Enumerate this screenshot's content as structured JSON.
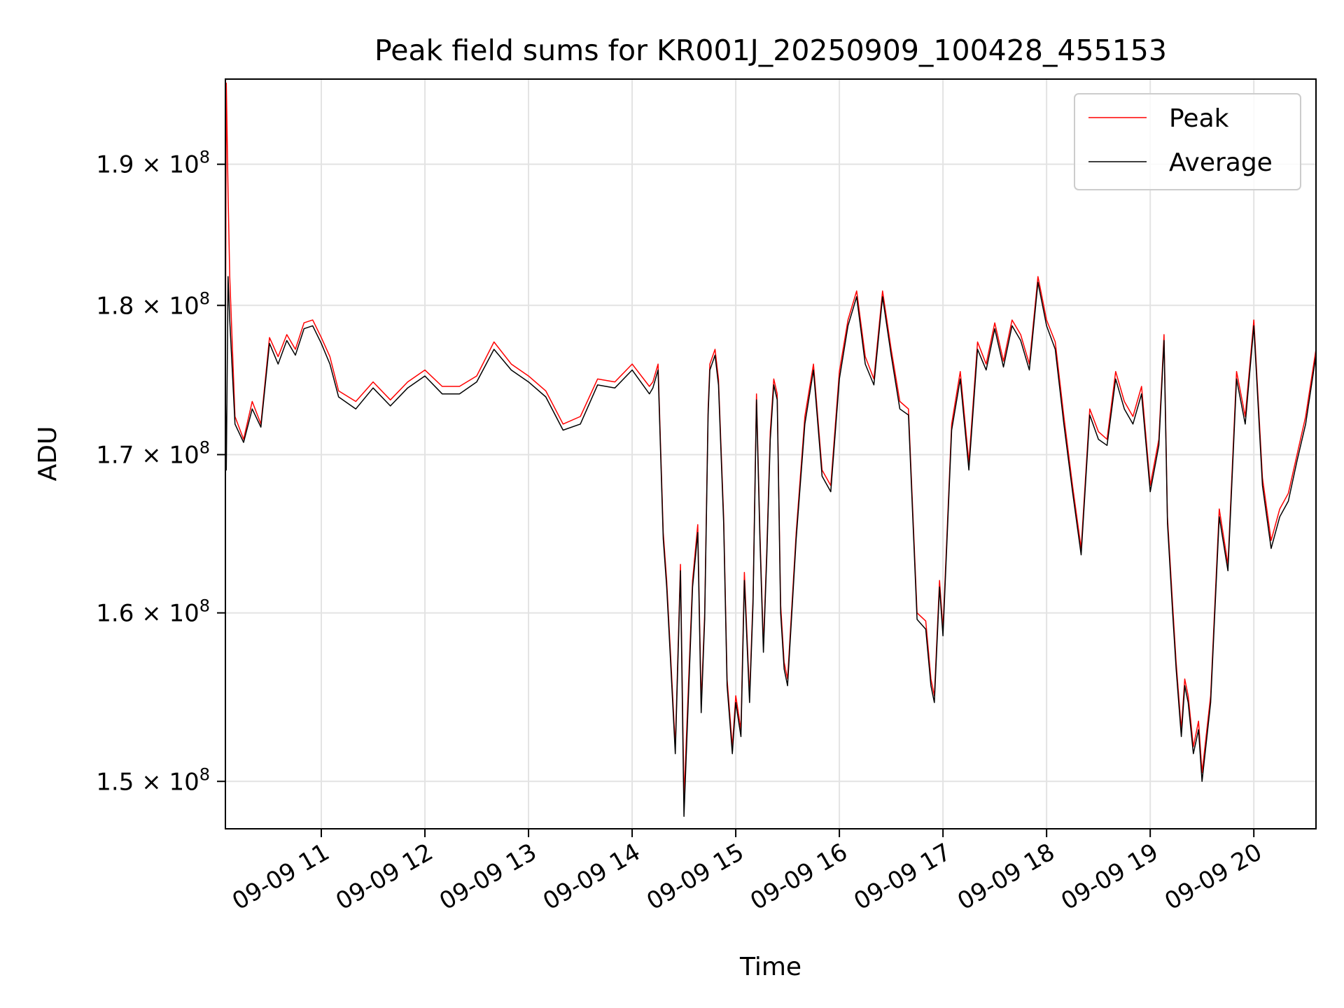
{
  "chart_data": {
    "type": "line",
    "title": "Peak field sums for KR001J_20250909_100428_455153",
    "xlabel": "Time",
    "ylabel": "ADU",
    "y_scale": "log",
    "ylim": [
      147300000,
      196300000
    ],
    "xlim": [
      "2025-09-09 10:04:28",
      "2025-09-09 20:36:00"
    ],
    "x_ticks": [
      {
        "x": "2025-09-09 11:00",
        "label": "09-09 11"
      },
      {
        "x": "2025-09-09 12:00",
        "label": "09-09 12"
      },
      {
        "x": "2025-09-09 13:00",
        "label": "09-09 13"
      },
      {
        "x": "2025-09-09 14:00",
        "label": "09-09 14"
      },
      {
        "x": "2025-09-09 15:00",
        "label": "09-09 15"
      },
      {
        "x": "2025-09-09 16:00",
        "label": "09-09 16"
      },
      {
        "x": "2025-09-09 17:00",
        "label": "09-09 17"
      },
      {
        "x": "2025-09-09 18:00",
        "label": "09-09 18"
      },
      {
        "x": "2025-09-09 19:00",
        "label": "09-09 19"
      },
      {
        "x": "2025-09-09 20:00",
        "label": "09-09 20"
      }
    ],
    "y_ticks": [
      {
        "value": 150000000,
        "mantissa": "1.5",
        "exponent": "8"
      },
      {
        "value": 160000000,
        "mantissa": "1.6",
        "exponent": "8"
      },
      {
        "value": 170000000,
        "mantissa": "1.7",
        "exponent": "8"
      },
      {
        "value": 180000000,
        "mantissa": "1.8",
        "exponent": "8"
      },
      {
        "value": 190000000,
        "mantissa": "1.9",
        "exponent": "8"
      }
    ],
    "grid": true,
    "legend_position": "top-right",
    "series": [
      {
        "name": "Peak",
        "color": "#ff0000",
        "x": [
          "2025-09-09 10:04:28",
          "2025-09-09 10:05:00",
          "2025-09-09 10:06:00",
          "2025-09-09 10:07:00",
          "2025-09-09 10:10:00",
          "2025-09-09 10:15:00",
          "2025-09-09 10:20:00",
          "2025-09-09 10:25:00",
          "2025-09-09 10:30:00",
          "2025-09-09 10:35:00",
          "2025-09-09 10:40:00",
          "2025-09-09 10:45:00",
          "2025-09-09 10:50:00",
          "2025-09-09 10:55:00",
          "2025-09-09 11:00:00",
          "2025-09-09 11:05:00",
          "2025-09-09 11:10:00",
          "2025-09-09 11:20:00",
          "2025-09-09 11:30:00",
          "2025-09-09 11:40:00",
          "2025-09-09 11:50:00",
          "2025-09-09 12:00:00",
          "2025-09-09 12:10:00",
          "2025-09-09 12:20:00",
          "2025-09-09 12:30:00",
          "2025-09-09 12:40:00",
          "2025-09-09 12:50:00",
          "2025-09-09 13:00:00",
          "2025-09-09 13:10:00",
          "2025-09-09 13:20:00",
          "2025-09-09 13:30:00",
          "2025-09-09 13:40:00",
          "2025-09-09 13:50:00",
          "2025-09-09 14:00:00",
          "2025-09-09 14:10:00",
          "2025-09-09 14:12:00",
          "2025-09-09 14:15:00",
          "2025-09-09 14:18:00",
          "2025-09-09 14:20:00",
          "2025-09-09 14:22:00",
          "2025-09-09 14:25:00",
          "2025-09-09 14:28:00",
          "2025-09-09 14:30:00",
          "2025-09-09 14:35:00",
          "2025-09-09 14:38:00",
          "2025-09-09 14:40:00",
          "2025-09-09 14:42:00",
          "2025-09-09 14:44:00",
          "2025-09-09 14:45:00",
          "2025-09-09 14:48:00",
          "2025-09-09 14:50:00",
          "2025-09-09 14:53:00",
          "2025-09-09 14:55:00",
          "2025-09-09 14:58:00",
          "2025-09-09 15:00:00",
          "2025-09-09 15:03:00",
          "2025-09-09 15:05:00",
          "2025-09-09 15:08:00",
          "2025-09-09 15:10:00",
          "2025-09-09 15:12:00",
          "2025-09-09 15:14:00",
          "2025-09-09 15:16:00",
          "2025-09-09 15:18:00",
          "2025-09-09 15:20:00",
          "2025-09-09 15:22:00",
          "2025-09-09 15:24:00",
          "2025-09-09 15:26:00",
          "2025-09-09 15:28:00",
          "2025-09-09 15:30:00",
          "2025-09-09 15:35:00",
          "2025-09-09 15:40:00",
          "2025-09-09 15:45:00",
          "2025-09-09 15:50:00",
          "2025-09-09 15:55:00",
          "2025-09-09 16:00:00",
          "2025-09-09 16:05:00",
          "2025-09-09 16:10:00",
          "2025-09-09 16:15:00",
          "2025-09-09 16:20:00",
          "2025-09-09 16:25:00",
          "2025-09-09 16:30:00",
          "2025-09-09 16:35:00",
          "2025-09-09 16:40:00",
          "2025-09-09 16:45:00",
          "2025-09-09 16:50:00",
          "2025-09-09 16:53:00",
          "2025-09-09 16:55:00",
          "2025-09-09 16:58:00",
          "2025-09-09 17:00:00",
          "2025-09-09 17:05:00",
          "2025-09-09 17:10:00",
          "2025-09-09 17:15:00",
          "2025-09-09 17:20:00",
          "2025-09-09 17:25:00",
          "2025-09-09 17:30:00",
          "2025-09-09 17:35:00",
          "2025-09-09 17:40:00",
          "2025-09-09 17:45:00",
          "2025-09-09 17:50:00",
          "2025-09-09 17:55:00",
          "2025-09-09 18:00:00",
          "2025-09-09 18:05:00",
          "2025-09-09 18:10:00",
          "2025-09-09 18:15:00",
          "2025-09-09 18:20:00",
          "2025-09-09 18:25:00",
          "2025-09-09 18:30:00",
          "2025-09-09 18:35:00",
          "2025-09-09 18:40:00",
          "2025-09-09 18:45:00",
          "2025-09-09 18:50:00",
          "2025-09-09 18:55:00",
          "2025-09-09 19:00:00",
          "2025-09-09 19:05:00",
          "2025-09-09 19:08:00",
          "2025-09-09 19:10:00",
          "2025-09-09 19:13:00",
          "2025-09-09 19:15:00",
          "2025-09-09 19:18:00",
          "2025-09-09 19:20:00",
          "2025-09-09 19:22:00",
          "2025-09-09 19:25:00",
          "2025-09-09 19:28:00",
          "2025-09-09 19:30:00",
          "2025-09-09 19:35:00",
          "2025-09-09 19:40:00",
          "2025-09-09 19:45:00",
          "2025-09-09 19:50:00",
          "2025-09-09 19:55:00",
          "2025-09-09 20:00:00",
          "2025-09-09 20:05:00",
          "2025-09-09 20:10:00",
          "2025-09-09 20:15:00",
          "2025-09-09 20:20:00",
          "2025-09-09 20:25:00",
          "2025-09-09 20:30:00",
          "2025-09-09 20:36:00"
        ],
        "values": [
          175000000,
          196000000,
          188000000,
          182000000,
          172500000,
          171000000,
          173500000,
          172000000,
          177800000,
          176500000,
          178000000,
          177000000,
          178800000,
          179000000,
          177800000,
          176500000,
          174200000,
          173500000,
          174800000,
          173600000,
          174800000,
          175600000,
          174500000,
          174500000,
          175200000,
          177500000,
          176000000,
          175200000,
          174200000,
          172000000,
          172500000,
          175000000,
          174800000,
          176000000,
          174500000,
          174800000,
          176000000,
          165000000,
          162000000,
          158000000,
          152000000,
          163000000,
          149000000,
          162000000,
          165500000,
          154500000,
          160000000,
          173000000,
          176000000,
          177000000,
          175000000,
          166000000,
          156000000,
          152000000,
          155000000,
          153000000,
          162500000,
          155000000,
          161000000,
          174000000,
          165000000,
          158000000,
          164000000,
          171500000,
          175000000,
          174000000,
          160500000,
          157000000,
          156000000,
          165000000,
          172500000,
          176000000,
          169000000,
          168000000,
          175500000,
          179000000,
          181000000,
          176500000,
          175000000,
          181000000,
          177000000,
          173500000,
          173000000,
          160000000,
          159500000,
          156000000,
          155000000,
          162000000,
          159000000,
          172000000,
          175500000,
          169500000,
          177500000,
          176000000,
          178800000,
          176200000,
          179000000,
          178000000,
          176000000,
          182000000,
          179000000,
          177500000,
          172500000,
          168000000,
          164000000,
          173000000,
          171500000,
          171000000,
          175500000,
          173500000,
          172500000,
          174500000,
          168000000,
          171000000,
          178000000,
          166000000,
          160500000,
          157000000,
          153000000,
          156000000,
          155000000,
          152000000,
          153500000,
          150500000,
          155000000,
          166500000,
          163000000,
          175500000,
          172500000,
          179000000,
          168500000,
          164500000,
          166500000,
          167500000,
          170000000,
          172500000,
          177000000
        ]
      },
      {
        "name": "Average",
        "color": "#000000",
        "x": [
          "2025-09-09 10:04:28",
          "2025-09-09 10:05:00",
          "2025-09-09 10:06:00",
          "2025-09-09 10:07:00",
          "2025-09-09 10:10:00",
          "2025-09-09 10:15:00",
          "2025-09-09 10:20:00",
          "2025-09-09 10:25:00",
          "2025-09-09 10:30:00",
          "2025-09-09 10:35:00",
          "2025-09-09 10:40:00",
          "2025-09-09 10:45:00",
          "2025-09-09 10:50:00",
          "2025-09-09 10:55:00",
          "2025-09-09 11:00:00",
          "2025-09-09 11:05:00",
          "2025-09-09 11:10:00",
          "2025-09-09 11:20:00",
          "2025-09-09 11:30:00",
          "2025-09-09 11:40:00",
          "2025-09-09 11:50:00",
          "2025-09-09 12:00:00",
          "2025-09-09 12:10:00",
          "2025-09-09 12:20:00",
          "2025-09-09 12:30:00",
          "2025-09-09 12:40:00",
          "2025-09-09 12:50:00",
          "2025-09-09 13:00:00",
          "2025-09-09 13:10:00",
          "2025-09-09 13:20:00",
          "2025-09-09 13:30:00",
          "2025-09-09 13:40:00",
          "2025-09-09 13:50:00",
          "2025-09-09 14:00:00",
          "2025-09-09 14:10:00",
          "2025-09-09 14:12:00",
          "2025-09-09 14:15:00",
          "2025-09-09 14:18:00",
          "2025-09-09 14:20:00",
          "2025-09-09 14:22:00",
          "2025-09-09 14:25:00",
          "2025-09-09 14:28:00",
          "2025-09-09 14:30:00",
          "2025-09-09 14:35:00",
          "2025-09-09 14:38:00",
          "2025-09-09 14:40:00",
          "2025-09-09 14:42:00",
          "2025-09-09 14:44:00",
          "2025-09-09 14:45:00",
          "2025-09-09 14:48:00",
          "2025-09-09 14:50:00",
          "2025-09-09 14:53:00",
          "2025-09-09 14:55:00",
          "2025-09-09 14:58:00",
          "2025-09-09 15:00:00",
          "2025-09-09 15:03:00",
          "2025-09-09 15:05:00",
          "2025-09-09 15:08:00",
          "2025-09-09 15:10:00",
          "2025-09-09 15:12:00",
          "2025-09-09 15:14:00",
          "2025-09-09 15:16:00",
          "2025-09-09 15:18:00",
          "2025-09-09 15:20:00",
          "2025-09-09 15:22:00",
          "2025-09-09 15:24:00",
          "2025-09-09 15:26:00",
          "2025-09-09 15:28:00",
          "2025-09-09 15:30:00",
          "2025-09-09 15:35:00",
          "2025-09-09 15:40:00",
          "2025-09-09 15:45:00",
          "2025-09-09 15:50:00",
          "2025-09-09 15:55:00",
          "2025-09-09 16:00:00",
          "2025-09-09 16:05:00",
          "2025-09-09 16:10:00",
          "2025-09-09 16:15:00",
          "2025-09-09 16:20:00",
          "2025-09-09 16:25:00",
          "2025-09-09 16:30:00",
          "2025-09-09 16:35:00",
          "2025-09-09 16:40:00",
          "2025-09-09 16:45:00",
          "2025-09-09 16:50:00",
          "2025-09-09 16:53:00",
          "2025-09-09 16:55:00",
          "2025-09-09 16:58:00",
          "2025-09-09 17:00:00",
          "2025-09-09 17:05:00",
          "2025-09-09 17:10:00",
          "2025-09-09 17:15:00",
          "2025-09-09 17:20:00",
          "2025-09-09 17:25:00",
          "2025-09-09 17:30:00",
          "2025-09-09 17:35:00",
          "2025-09-09 17:40:00",
          "2025-09-09 17:45:00",
          "2025-09-09 17:50:00",
          "2025-09-09 17:55:00",
          "2025-09-09 18:00:00",
          "2025-09-09 18:05:00",
          "2025-09-09 18:10:00",
          "2025-09-09 18:15:00",
          "2025-09-09 18:20:00",
          "2025-09-09 18:25:00",
          "2025-09-09 18:30:00",
          "2025-09-09 18:35:00",
          "2025-09-09 18:40:00",
          "2025-09-09 18:45:00",
          "2025-09-09 18:50:00",
          "2025-09-09 18:55:00",
          "2025-09-09 19:00:00",
          "2025-09-09 19:05:00",
          "2025-09-09 19:08:00",
          "2025-09-09 19:10:00",
          "2025-09-09 19:13:00",
          "2025-09-09 19:15:00",
          "2025-09-09 19:18:00",
          "2025-09-09 19:20:00",
          "2025-09-09 19:22:00",
          "2025-09-09 19:25:00",
          "2025-09-09 19:28:00",
          "2025-09-09 19:30:00",
          "2025-09-09 19:35:00",
          "2025-09-09 19:40:00",
          "2025-09-09 19:45:00",
          "2025-09-09 19:50:00",
          "2025-09-09 19:55:00",
          "2025-09-09 20:00:00",
          "2025-09-09 20:05:00",
          "2025-09-09 20:10:00",
          "2025-09-09 20:15:00",
          "2025-09-09 20:20:00",
          "2025-09-09 20:25:00",
          "2025-09-09 20:30:00",
          "2025-09-09 20:36:00"
        ],
        "values": [
          174500000,
          169000000,
          182000000,
          179000000,
          172000000,
          170800000,
          173000000,
          171800000,
          177400000,
          176000000,
          177600000,
          176600000,
          178400000,
          178600000,
          177400000,
          176000000,
          173800000,
          173000000,
          174400000,
          173200000,
          174400000,
          175200000,
          174000000,
          174000000,
          174800000,
          177000000,
          175600000,
          174800000,
          173800000,
          171600000,
          172000000,
          174600000,
          174400000,
          175600000,
          174000000,
          174400000,
          175600000,
          164600000,
          161600000,
          157600000,
          151600000,
          162600000,
          148000000,
          161600000,
          165000000,
          154000000,
          159600000,
          172600000,
          175600000,
          176600000,
          174600000,
          165600000,
          155600000,
          151600000,
          154600000,
          152600000,
          162000000,
          154600000,
          160600000,
          173600000,
          164600000,
          157600000,
          163600000,
          171000000,
          174600000,
          173600000,
          160000000,
          156600000,
          155600000,
          164600000,
          172000000,
          175600000,
          168600000,
          167600000,
          175000000,
          178600000,
          180600000,
          176000000,
          174600000,
          180600000,
          176600000,
          173000000,
          172600000,
          159600000,
          159000000,
          155600000,
          154600000,
          161600000,
          158600000,
          171600000,
          175000000,
          169000000,
          177000000,
          175600000,
          178400000,
          175800000,
          178600000,
          177600000,
          175600000,
          181600000,
          178600000,
          177000000,
          172000000,
          167600000,
          163600000,
          172600000,
          171000000,
          170600000,
          175000000,
          173000000,
          172000000,
          174000000,
          167600000,
          170600000,
          177600000,
          165600000,
          160000000,
          156600000,
          152600000,
          155600000,
          154600000,
          151600000,
          153000000,
          150000000,
          154600000,
          166000000,
          162600000,
          175000000,
          172000000,
          178600000,
          168000000,
          164000000,
          166000000,
          167000000,
          169600000,
          172000000,
          176600000
        ]
      }
    ]
  }
}
